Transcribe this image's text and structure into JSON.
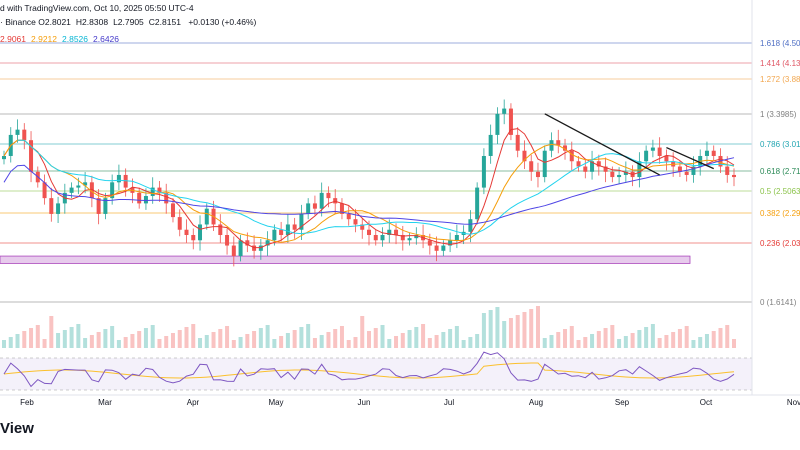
{
  "header": {
    "published_text": "d with TradingView.com, Oct 10, 2025 05:50 UTC-4",
    "exchange_text": "· Binance",
    "ohlc": [
      {
        "label": "O",
        "value": "2.8021"
      },
      {
        "label": "H",
        "value": "2.8308"
      },
      {
        "label": "L",
        "value": "2.7905"
      },
      {
        "label": "C",
        "value": "2.8151"
      }
    ],
    "change_text": "+0.0130 (+0.46%)",
    "ma_values": [
      {
        "value": "2.9061",
        "color": "#e53935"
      },
      {
        "value": "2.9212",
        "color": "#f59e0b"
      },
      {
        "value": "2.8526",
        "color": "#06b6d4"
      },
      {
        "value": "2.6426",
        "color": "#4338ca"
      }
    ]
  },
  "footer": {
    "brand_fragment": "View"
  },
  "colors": {
    "up": "#26a69a",
    "down": "#ef5350",
    "ma_fast": "#e53935",
    "ma_mid": "#f59e0b",
    "ma_slow": "#22d3ee",
    "ma_long": "#4f46e5",
    "rsi": "#7e57c2",
    "rsi_ma": "#fbc02d",
    "zone": "#e1bee7"
  },
  "chart_data": {
    "type": "candlestick",
    "symbol_pair_exchange": "Binance",
    "x_axis_labels": [
      "Feb",
      "Mar",
      "Apr",
      "May",
      "Jun",
      "Jul",
      "Aug",
      "Sep",
      "Oct",
      "Nov"
    ],
    "fib_levels": [
      {
        "label": "1.618 (4.50",
        "color": "#4f6fc4"
      },
      {
        "label": "1.414 (4.13",
        "color": "#e05765"
      },
      {
        "label": "1.272 (3.88",
        "color": "#f2a74f"
      },
      {
        "label": "1 (3.3985)",
        "color": "#808080"
      },
      {
        "label": "0.786 (3.01",
        "color": "#23a6b2"
      },
      {
        "label": "0.618 (2.71",
        "color": "#2b8a57"
      },
      {
        "label": "0.5 (2.5063",
        "color": "#8bc34a"
      },
      {
        "label": "0.382 (2.29",
        "color": "#f59e0b"
      },
      {
        "label": "0.236 (2.03",
        "color": "#e53935"
      },
      {
        "label": "0 (1.6141)",
        "color": "#808080"
      }
    ],
    "fib_values": [
      4.5,
      4.13,
      3.88,
      3.3985,
      3.01,
      2.71,
      2.5063,
      2.29,
      2.03,
      1.6141
    ],
    "close_series_approx": [
      3.0,
      3.2,
      3.25,
      3.15,
      2.85,
      2.75,
      2.6,
      2.45,
      2.55,
      2.65,
      2.7,
      2.72,
      2.75,
      2.6,
      2.45,
      2.6,
      2.75,
      2.82,
      2.7,
      2.65,
      2.55,
      2.62,
      2.7,
      2.65,
      2.55,
      2.42,
      2.3,
      2.25,
      2.2,
      2.35,
      2.5,
      2.35,
      2.25,
      2.15,
      2.05,
      2.2,
      2.15,
      2.1,
      2.15,
      2.2,
      2.3,
      2.25,
      2.35,
      2.3,
      2.45,
      2.55,
      2.5,
      2.65,
      2.6,
      2.55,
      2.45,
      2.4,
      2.35,
      2.3,
      2.25,
      2.2,
      2.25,
      2.3,
      2.25,
      2.2,
      2.22,
      2.25,
      2.2,
      2.15,
      2.1,
      2.15,
      2.2,
      2.25,
      2.28,
      2.4,
      2.7,
      3.0,
      3.2,
      3.4,
      3.45,
      3.2,
      3.05,
      2.95,
      2.85,
      2.8,
      3.05,
      3.15,
      3.1,
      3.05,
      2.95,
      2.9,
      2.85,
      2.95,
      2.9,
      2.85,
      2.8,
      2.82,
      2.85,
      2.8,
      2.95,
      3.05,
      3.08,
      3.0,
      2.95,
      2.9,
      2.85,
      2.82,
      2.9,
      3.0,
      3.05,
      3.0,
      2.9,
      2.82,
      2.8
    ],
    "trendlines": [
      {
        "from_index": 80,
        "from_value": 3.4,
        "to_index": 97,
        "to_value": 2.82
      },
      {
        "from_index": 98,
        "from_value": 3.08,
        "to_index": 105,
        "to_value": 2.88
      }
    ],
    "support_zone": {
      "low": 1.98,
      "high": 2.05
    },
    "rsi_panel": {
      "overbought": 70,
      "oversold": 30
    }
  }
}
